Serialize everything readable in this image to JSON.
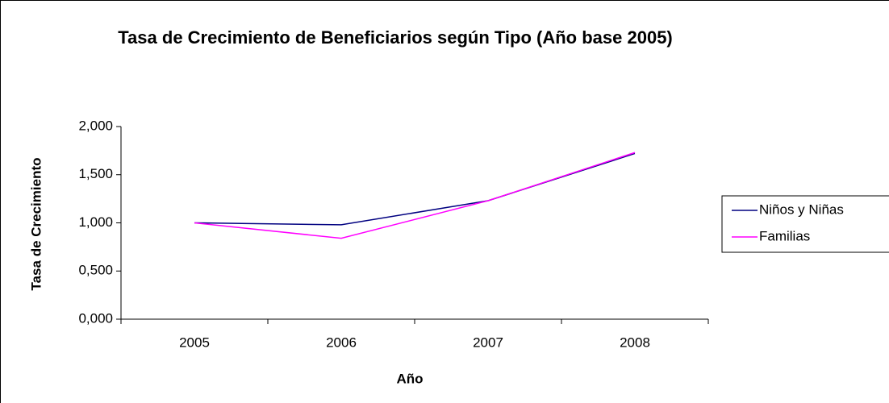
{
  "chart_data": {
    "type": "line",
    "title": "Tasa de Crecimiento de Beneficiarios según Tipo (Año base 2005)",
    "x_label": "Año",
    "y_label": "Tasa de Crecimiento",
    "categories": [
      "2005",
      "2006",
      "2007",
      "2008"
    ],
    "series": [
      {
        "name": "Niños y Niñas",
        "color": "#000080",
        "values": [
          1.0,
          0.98,
          1.23,
          1.72
        ]
      },
      {
        "name": "Familias",
        "color": "#ff00ff",
        "values": [
          1.0,
          0.84,
          1.23,
          1.73
        ]
      }
    ],
    "ylim": [
      0,
      2
    ],
    "yticks": [
      {
        "value": 0,
        "label": "0,000"
      },
      {
        "value": 0.5,
        "label": "0,500"
      },
      {
        "value": 1,
        "label": "1,000"
      },
      {
        "value": 1.5,
        "label": "1,500"
      },
      {
        "value": 2,
        "label": "2,000"
      }
    ],
    "grid": false,
    "legend": "right"
  }
}
